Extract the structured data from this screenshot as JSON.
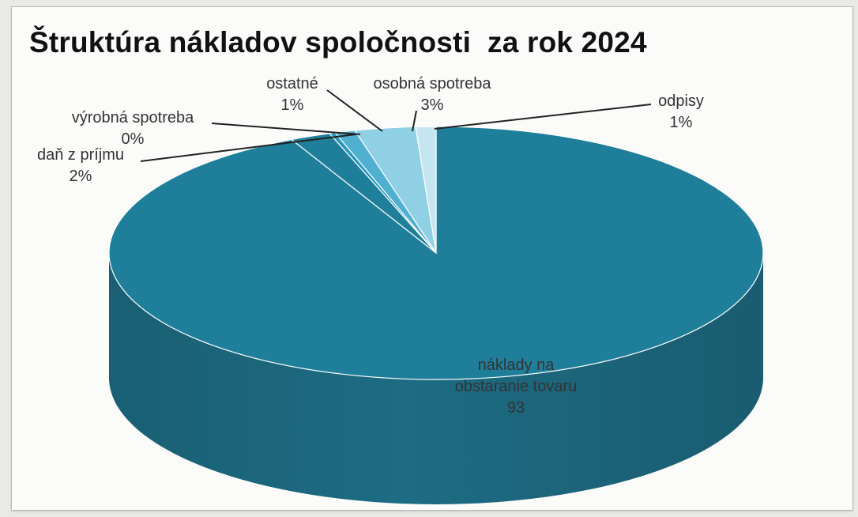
{
  "chart_data": {
    "type": "pie",
    "title": "Štruktúra nákladov spoločnosti  za rok 2024",
    "slices": [
      {
        "name": "náklady na obstaranie tovaru",
        "value": 93,
        "label_lines": [
          "náklady na",
          "obstaranie tovaru",
          "93"
        ],
        "color": "#1f7f9a"
      },
      {
        "name": "daň z príjmu",
        "value": 2,
        "label_lines": [
          "daň z príjmu",
          "2%"
        ],
        "color": "#1f7f9a"
      },
      {
        "name": "výrobná spotreba",
        "value": 0,
        "label_lines": [
          "výrobná spotreba",
          "0%"
        ],
        "color": "#2a97bf"
      },
      {
        "name": "ostatné",
        "value": 1,
        "label_lines": [
          "ostatné",
          "1%"
        ],
        "color": "#4fb0d0"
      },
      {
        "name": "osobná spotreba",
        "value": 3,
        "label_lines": [
          "osobná spotreba",
          "3%"
        ],
        "color": "#8fd0e4"
      },
      {
        "name": "odpisy",
        "value": 1,
        "label_lines": [
          "odpisy",
          "1%"
        ],
        "color": "#c5e6f0"
      }
    ]
  }
}
